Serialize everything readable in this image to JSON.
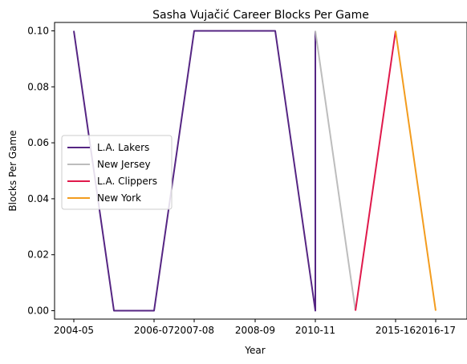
{
  "chart_data": {
    "type": "line",
    "title": "Sasha Vujačić Career Blocks Per Game",
    "xlabel": "Year",
    "ylabel": "Blocks Per Game",
    "x_ticks": [
      "2004-05",
      "2006-07",
      "2007-08",
      "2008-09",
      "2010-11",
      "2015-16",
      "2016-17"
    ],
    "y_ticks": [
      "0.00",
      "0.02",
      "0.04",
      "0.06",
      "0.08",
      "0.10"
    ],
    "ylim": [
      -0.003,
      0.103
    ],
    "legend_position": "center-left",
    "grid": false,
    "series": [
      {
        "name": "L.A. Lakers",
        "color": "#552583",
        "points": [
          {
            "x": "2004-05",
            "y": 0.1
          },
          {
            "x": "2005-06",
            "y": 0.0
          },
          {
            "x": "2006-07",
            "y": 0.0
          },
          {
            "x": "2007-08",
            "y": 0.1
          },
          {
            "x": "2008-09",
            "y": 0.1
          },
          {
            "x": "2009-10",
            "y": 0.1
          },
          {
            "x": "2010-11",
            "y": 0.0
          },
          {
            "x": "2010-11",
            "y": 0.1
          }
        ]
      },
      {
        "name": "New Jersey",
        "color": "#bdbdbd",
        "points": [
          {
            "x": "2010-11",
            "y": 0.1
          },
          {
            "x": "2011-12",
            "y": 0.0
          }
        ]
      },
      {
        "name": "L.A. Clippers",
        "color": "#e0194b",
        "points": [
          {
            "x": "2011-12",
            "y": 0.0
          },
          {
            "x": "2015-16",
            "y": 0.1
          }
        ]
      },
      {
        "name": "New York",
        "color": "#f39c1e",
        "points": [
          {
            "x": "2015-16",
            "y": 0.1
          },
          {
            "x": "2016-17",
            "y": 0.0
          }
        ]
      }
    ]
  }
}
